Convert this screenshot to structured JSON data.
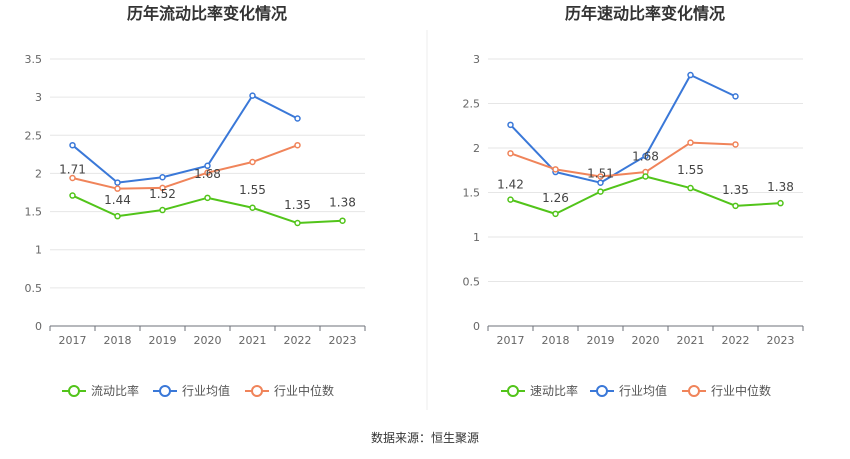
{
  "source": "数据来源：恒生聚源",
  "chart_data": [
    {
      "type": "line",
      "title": "历年流动比率变化情况",
      "categories": [
        "2017",
        "2018",
        "2019",
        "2020",
        "2021",
        "2022",
        "2023"
      ],
      "ylim": [
        0,
        3.5
      ],
      "yticks": [
        "0",
        "0.5",
        "1",
        "1.5",
        "2",
        "2.5",
        "3",
        "3.5"
      ],
      "grid": true,
      "legend_position": "bottom",
      "series": [
        {
          "name": "流动比率",
          "color": "#52c41a",
          "values": [
            1.71,
            1.44,
            1.52,
            1.68,
            1.55,
            1.35,
            1.38
          ],
          "labels": [
            "1.71",
            "1.44",
            "1.52",
            "1.68",
            "1.55",
            "1.35",
            "1.38"
          ]
        },
        {
          "name": "行业均值",
          "color": "#3a78d8",
          "values": [
            2.37,
            1.88,
            1.95,
            2.1,
            3.02,
            2.72,
            null
          ]
        },
        {
          "name": "行业中位数",
          "color": "#f0845a",
          "values": [
            1.94,
            1.8,
            1.81,
            2.01,
            2.15,
            2.37,
            null
          ]
        }
      ]
    },
    {
      "type": "line",
      "title": "历年速动比率变化情况",
      "categories": [
        "2017",
        "2018",
        "2019",
        "2020",
        "2021",
        "2022",
        "2023"
      ],
      "ylim": [
        0,
        3
      ],
      "yticks": [
        "0",
        "0.5",
        "1",
        "1.5",
        "2",
        "2.5",
        "3"
      ],
      "grid": true,
      "legend_position": "bottom",
      "series": [
        {
          "name": "速动比率",
          "color": "#52c41a",
          "values": [
            1.42,
            1.26,
            1.51,
            1.68,
            1.55,
            1.35,
            1.38
          ],
          "labels": [
            "1.42",
            "1.26",
            "1.51",
            "1.68",
            "1.55",
            "1.35",
            "1.38"
          ]
        },
        {
          "name": "行业均值",
          "color": "#3a78d8",
          "values": [
            2.26,
            1.73,
            1.61,
            1.91,
            2.82,
            2.58,
            null
          ]
        },
        {
          "name": "行业中位数",
          "color": "#f0845a",
          "values": [
            1.94,
            1.76,
            1.68,
            1.73,
            2.06,
            2.04,
            null
          ]
        }
      ]
    }
  ]
}
